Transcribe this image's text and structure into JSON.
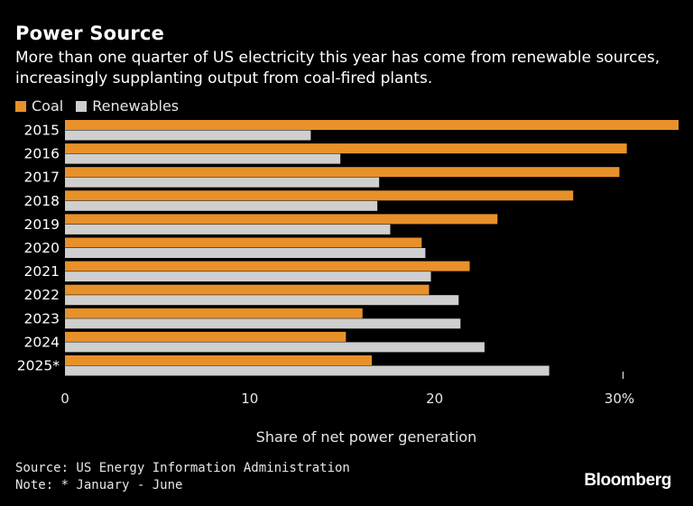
{
  "title": "Power Source",
  "subtitle": "More than one quarter of US electricity this year has come from renewable sources, increasingly supplanting output from coal-fired plants.",
  "legend": {
    "coal": "Coal",
    "renewables": "Renewables"
  },
  "colors": {
    "coal": "#e8912a",
    "renewables": "#cfcfcf",
    "background": "#000000",
    "text": "#ffffff"
  },
  "chart_data": {
    "type": "bar",
    "orientation": "horizontal",
    "categories": [
      "2015",
      "2016",
      "2017",
      "2018",
      "2019",
      "2020",
      "2021",
      "2022",
      "2023",
      "2024",
      "2025*"
    ],
    "series": [
      {
        "name": "Coal",
        "values": [
          33.2,
          30.4,
          30.0,
          27.5,
          23.4,
          19.3,
          21.9,
          19.7,
          16.1,
          15.2,
          16.6
        ]
      },
      {
        "name": "Renewables",
        "values": [
          13.3,
          14.9,
          17.0,
          16.9,
          17.6,
          19.5,
          19.8,
          21.3,
          21.4,
          22.7,
          26.2
        ]
      }
    ],
    "xticks": [
      0,
      10,
      20,
      30
    ],
    "xtick_labels": [
      "0",
      "10",
      "20",
      "30%"
    ],
    "xlim": [
      0,
      33.2
    ],
    "xlabel": "Share of net power generation",
    "legend_position": "top-left"
  },
  "source": "Source: US Energy Information Administration",
  "note": "Note: * January - June",
  "brand": "Bloomberg"
}
